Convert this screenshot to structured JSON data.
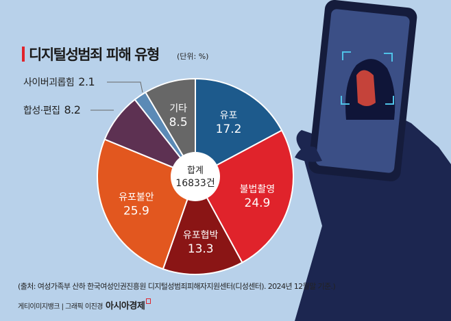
{
  "chart_data": {
    "type": "pie",
    "title": "디지털성범죄 피해 유형",
    "unit": "(단위: %)",
    "center_label": "합계",
    "center_value": "16833건",
    "slices": [
      {
        "label": "유포",
        "value": 17.2,
        "color": "#1d5a8c"
      },
      {
        "label": "불법촬영",
        "value": 24.9,
        "color": "#e0232b"
      },
      {
        "label": "유포협박",
        "value": 13.3,
        "color": "#8a1515"
      },
      {
        "label": "유포불안",
        "value": 25.9,
        "color": "#e2571f"
      },
      {
        "label": "합성·편집",
        "value": 8.2,
        "color": "#5d3152"
      },
      {
        "label": "사이버괴롭힘",
        "value": 2.1,
        "color": "#5b8ab6"
      },
      {
        "label": "기타",
        "value": 8.5,
        "color": "#676767"
      }
    ],
    "external_labels": [
      {
        "label": "사이버괴롭힘",
        "value": "2.1"
      },
      {
        "label": "합성·편집",
        "value": "8.2"
      }
    ],
    "legend": "none"
  },
  "footer": {
    "source": "(출처: 여성가족부 산하 한국여성인권진흥원 디지털성범죄피해자지원센터(디성센터). 2024년 12월말 기준.)",
    "credit": "게티이미지뱅크 | 그래픽 이진경",
    "brand": "아시아경제"
  }
}
